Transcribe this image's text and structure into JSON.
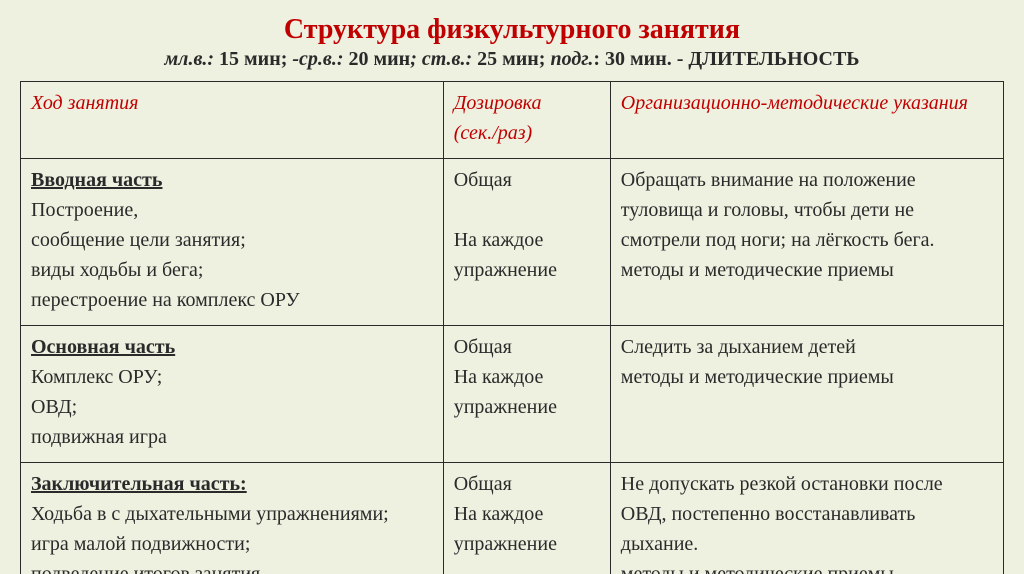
{
  "title": "Структура физкультурного занятия",
  "subtitle_parts": {
    "p1": "мл.в.:",
    "v1": " 15 мин; ",
    "p2": "-ср.в.:",
    "v2": " 20 мин",
    "p3": "; ст.в.:",
    "v3": " 25 мин; ",
    "p4": "подг.",
    "v4": ": 30 мин. - ДЛИТЕЛЬНОСТЬ"
  },
  "headers": {
    "c1": "Ход занятия",
    "c2_l1": "Дозировка",
    "c2_l2": "(сек./раз)",
    "c3": "Организационно-методические указания"
  },
  "rows": [
    {
      "section": "Вводная часть",
      "lines": [
        "Построение,",
        "сообщение цели занятия;",
        "виды ходьбы и бега;",
        "перестроение на комплекс ОРУ"
      ],
      "dose_l1": "Общая",
      "dose_l2": "На каждое упражнение",
      "notes": [
        "Обращать внимание на положение туловища и головы, чтобы дети не смотрели под ноги; на лёгкость бега.",
        "методы и методические приемы"
      ]
    },
    {
      "section": "Основная часть",
      "lines": [
        "Комплекс ОРУ;",
        "ОВД;",
        "подвижная игра"
      ],
      "dose_l1": "Общая",
      "dose_l2": "На каждое упражнение",
      "notes": [
        "Следить за дыханием детей",
        "методы и методические приемы"
      ]
    },
    {
      "section": "Заключительная часть:",
      "lines": [
        "Ходьба в с дыхательными упражнениями;",
        "игра малой подвижности;",
        "подведение итогов занятия"
      ],
      "dose_l1": "Общая",
      "dose_l2": "На каждое упражнение",
      "notes": [
        "Не допускать резкой остановки после ОВД, постепенно восстанавливать дыхание.",
        "методы и методические приемы"
      ]
    }
  ],
  "colors": {
    "background": "#eef0e0",
    "accent": "#c00000",
    "text": "#2a2a2a",
    "border": "#2a2a2a"
  }
}
